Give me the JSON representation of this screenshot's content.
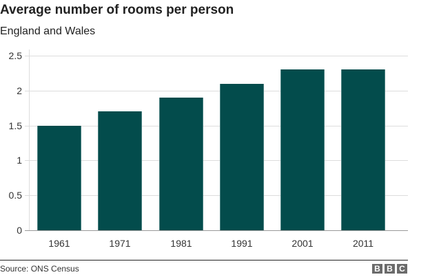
{
  "header": {
    "title": "Average number of rooms per person",
    "subtitle": "England and Wales"
  },
  "chart_data": {
    "type": "bar",
    "title": "Average number of rooms per person",
    "subtitle": "England and Wales",
    "categories": [
      "1961",
      "1971",
      "1981",
      "1991",
      "2001",
      "2011"
    ],
    "values": [
      1.5,
      1.7,
      1.9,
      2.1,
      2.3,
      2.3
    ],
    "xlabel": "",
    "ylabel": "",
    "ylim": [
      0,
      2.5
    ],
    "yticks": [
      "0",
      "0.5",
      "1",
      "1.5",
      "2",
      "2.5"
    ],
    "grid": true,
    "legend": null,
    "bar_color": "#034c4c"
  },
  "footer": {
    "source": "Source: ONS Census",
    "logo": [
      "B",
      "B",
      "C"
    ]
  }
}
